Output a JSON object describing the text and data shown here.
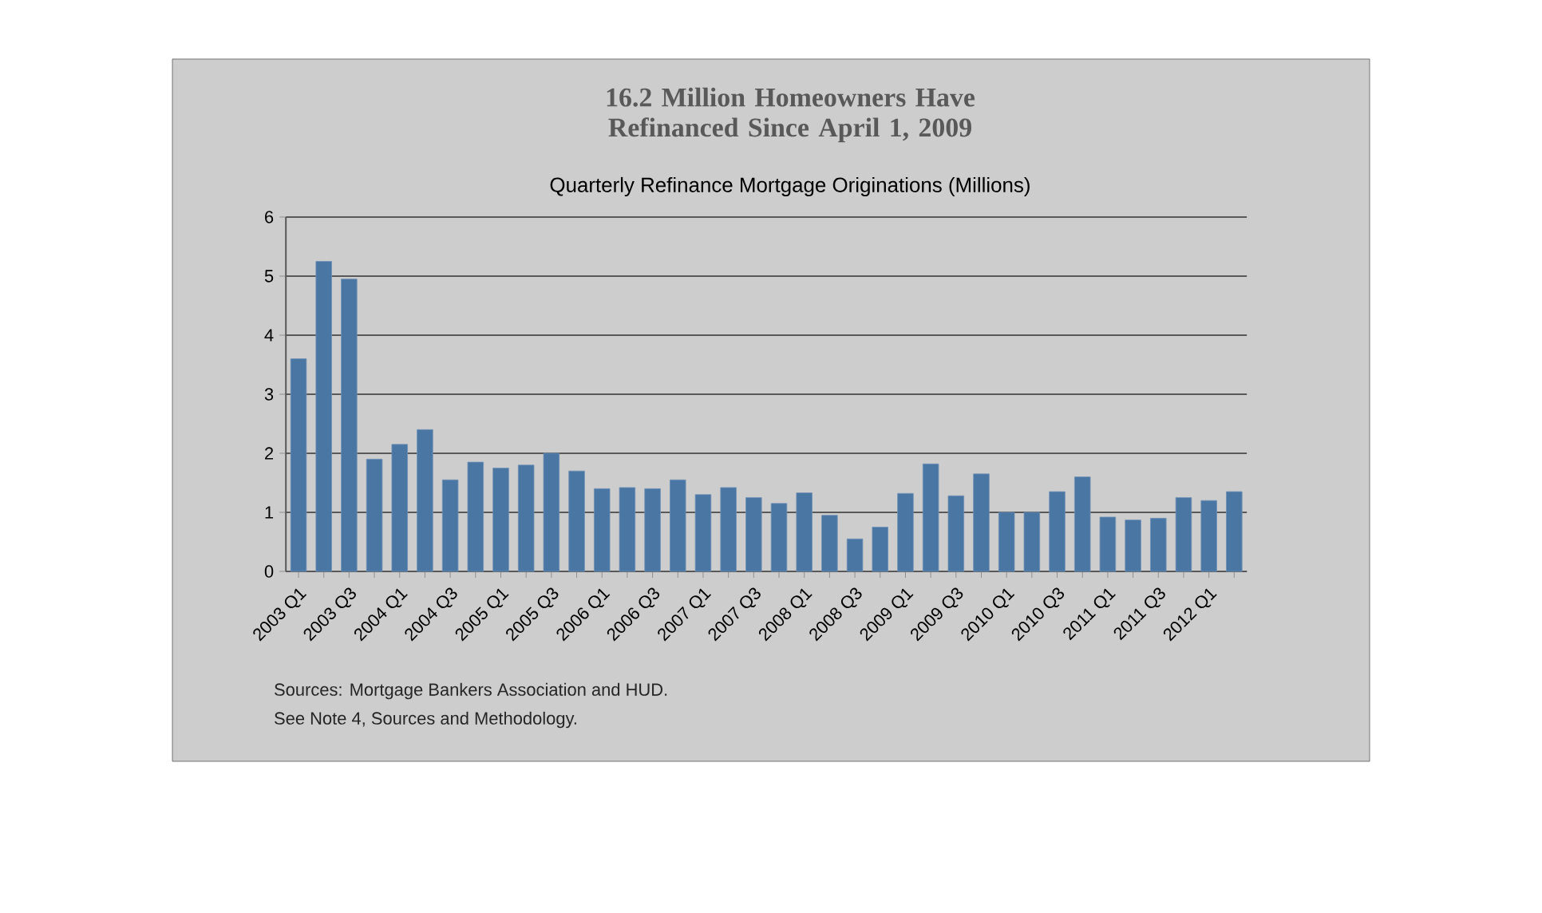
{
  "chart_data": {
    "type": "bar",
    "title": "16.2 Million Homeowners Have Refinanced Since April 1, 2009",
    "subtitle": "Quarterly Refinance Mortgage Originations (Millions)",
    "categories": [
      "2003 Q1",
      null,
      "2003 Q3",
      null,
      "2004 Q1",
      null,
      "2004 Q3",
      null,
      "2005 Q1",
      null,
      "2005 Q3",
      null,
      "2006 Q1",
      null,
      "2006 Q3",
      null,
      "2007 Q1",
      null,
      "2007 Q3",
      null,
      "2008 Q1",
      null,
      "2008 Q3",
      null,
      "2009 Q1",
      null,
      "2009 Q3",
      null,
      "2010 Q1",
      null,
      "2010 Q3",
      null,
      "2011 Q1",
      null,
      "2011 Q3",
      null,
      "2012 Q1",
      null
    ],
    "values": [
      3.6,
      5.25,
      4.95,
      1.9,
      2.15,
      2.4,
      1.55,
      1.85,
      1.75,
      1.8,
      2.0,
      1.7,
      1.4,
      1.42,
      1.4,
      1.55,
      1.3,
      1.42,
      1.25,
      1.15,
      1.33,
      0.95,
      0.55,
      0.75,
      1.32,
      1.82,
      1.28,
      1.65,
      1.0,
      1.0,
      1.35,
      1.6,
      0.92,
      0.87,
      0.9,
      1.25,
      1.2,
      1.35
    ],
    "color": "#4a76a3",
    "ylim": [
      0,
      6
    ],
    "yticks": [
      0,
      1,
      2,
      3,
      4,
      5,
      6
    ],
    "grid": "y",
    "annotations": [
      "Sources:  Mortgage Bankers Association and HUD.",
      "See Note 4, Sources and Methodology."
    ]
  }
}
